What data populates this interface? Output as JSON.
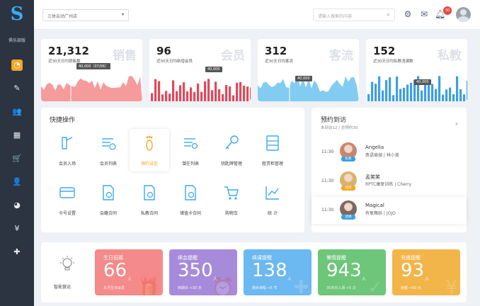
{
  "sidebar": {
    "logo": "S",
    "club_label": "俱乐部版",
    "items": [
      {
        "name": "dashboard",
        "icon": "speedometer-icon",
        "glyph": "◔",
        "active": true
      },
      {
        "name": "marketing",
        "icon": "pen-icon",
        "glyph": "✎"
      },
      {
        "name": "members",
        "icon": "users-icon",
        "glyph": "👥"
      },
      {
        "name": "schedule",
        "icon": "calendar-icon",
        "glyph": "▦"
      },
      {
        "name": "shop",
        "icon": "cart-icon",
        "glyph": "🛒"
      },
      {
        "name": "staff",
        "icon": "user-icon",
        "glyph": "👤"
      },
      {
        "name": "reports",
        "icon": "pie-chart-icon",
        "glyph": "◕"
      },
      {
        "name": "finance",
        "icon": "yen-icon",
        "glyph": "¥"
      },
      {
        "name": "apps",
        "icon": "puzzle-icon",
        "glyph": "✚"
      }
    ]
  },
  "header": {
    "store": "三体云动广州店",
    "search_placeholder": "请输入搜索的内容",
    "notification_count": "30"
  },
  "stats": [
    {
      "value": "21,312",
      "desc": "近30天日均销售额",
      "watermark": "销售",
      "tag": "40,000（07/06）",
      "color": "#f48a8a",
      "kind": "area"
    },
    {
      "value": "96",
      "desc": "近30天日均新增会员",
      "watermark": "会员",
      "tag": "40,000",
      "color": "#e2495c",
      "kind": "bars"
    },
    {
      "value": "312",
      "desc": "近30天日均客流",
      "watermark": "客流",
      "tag": "40,000",
      "color": "#6cc3ef",
      "kind": "area"
    },
    {
      "value": "152",
      "desc": "近30天日均私教消课数",
      "watermark": "私教",
      "tag": "40,000",
      "color": "#3d9fe0",
      "kind": "bars"
    }
  ],
  "quick_ops": {
    "title": "快捷操作",
    "items": [
      {
        "label": "会员入场",
        "icon": "gate-icon"
      },
      {
        "label": "会员列表",
        "icon": "member-list-icon"
      },
      {
        "label": "预约设定",
        "icon": "footprint-icon",
        "highlight": true
      },
      {
        "label": "潜在列表",
        "icon": "potential-list-icon"
      },
      {
        "label": "钥匙牌管理",
        "icon": "key-icon"
      },
      {
        "label": "租赁柜管理",
        "icon": "locker-icon"
      },
      {
        "label": "卡号设置",
        "icon": "card-icon"
      },
      {
        "label": "会籍合同",
        "icon": "membership-contract-icon"
      },
      {
        "label": "私教合同",
        "icon": "pt-contract-icon"
      },
      {
        "label": "储值卡合同",
        "icon": "stored-card-contract-icon"
      },
      {
        "label": "购物车",
        "icon": "shopping-cart-icon"
      },
      {
        "label": "统 计",
        "icon": "stats-chart-icon"
      }
    ]
  },
  "visits": {
    "title": "预约到访",
    "subtitle": "未到访12 / 总预约30",
    "items": [
      {
        "time": "11:30",
        "name": "Angelia",
        "course": "燕语瑜伽 | 林小美",
        "tag": "私教",
        "tag_color": "#3d9fe0"
      },
      {
        "time": "11:30",
        "name": "孟笑笑",
        "course": "RPTC康复训练 | Cherry",
        "tag": "团课",
        "tag_color": "#f5a623"
      },
      {
        "time": "11:30",
        "name": "Magical",
        "course": "有氧舞蹈 | JOJO",
        "tag": "团课",
        "tag_color": "#3d9fe0"
      }
    ]
  },
  "smart_ops": {
    "label": "智能营运",
    "cards": [
      {
        "title": "生日祝福",
        "value": "66",
        "unit": "人",
        "note": "本月生日会员",
        "color": "#f48a8a",
        "deco": "🎁"
      },
      {
        "title": "续会提醒",
        "value": "350",
        "unit": "人",
        "note": "到期日 <30 天",
        "color": "#a78bdb",
        "deco": "⏰"
      },
      {
        "title": "续课提醒",
        "value": "138",
        "unit": "人",
        "note": "剩余课程 <5 节",
        "color": "#6cb8f0",
        "deco": "✚"
      },
      {
        "title": "懒惰提醒",
        "value": "943",
        "unit": "人",
        "note": "30天内入场 <5 次",
        "color": "#6dc679",
        "deco": "✓"
      },
      {
        "title": "充值提醒",
        "value": "93",
        "unit": "人",
        "note": "余额 <50 元",
        "color": "#f2b54a",
        "deco": "¥"
      }
    ]
  }
}
